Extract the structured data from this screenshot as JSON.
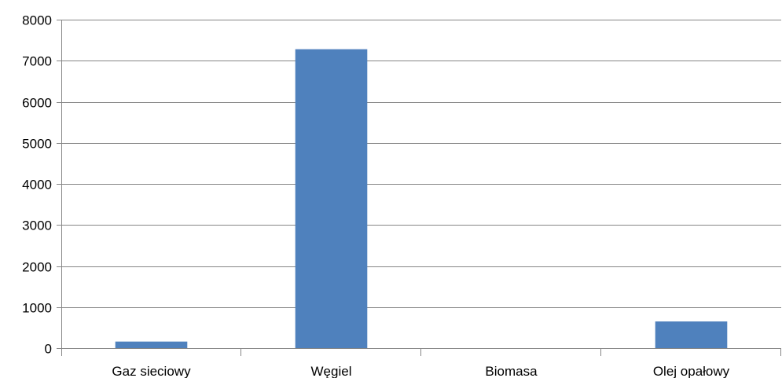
{
  "chart_data": {
    "type": "bar",
    "title": "",
    "xlabel": "",
    "ylabel": "",
    "categories": [
      "Gaz sieciowy",
      "Węgiel",
      "Biomasa",
      "Olej opałowy"
    ],
    "values": [
      160,
      7280,
      0,
      650
    ],
    "ylim": [
      0,
      8000
    ],
    "yticks": [
      "0",
      "1000",
      "2000",
      "3000",
      "4000",
      "5000",
      "6000",
      "7000",
      "8000"
    ],
    "grid": true,
    "legend": "none",
    "bar_color": "#4F81BD",
    "grid_color": "#868686",
    "axis_color": "#868686"
  }
}
